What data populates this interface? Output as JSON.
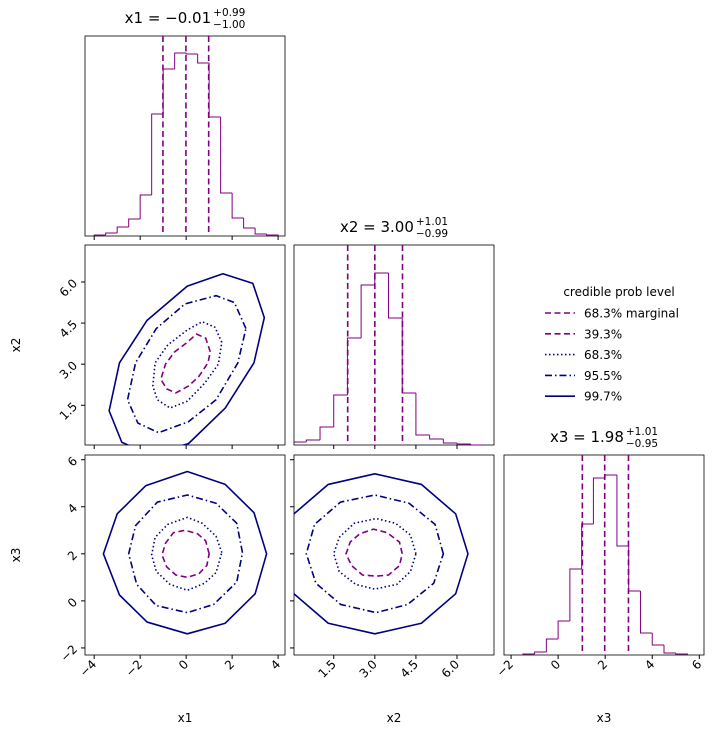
{
  "chart_data": {
    "type": "corner",
    "hist_color": "#800080",
    "parameters": [
      {
        "name": "x1",
        "range": [
          -4.4,
          4.3
        ],
        "ticks": [
          {
            "value": -4,
            "label": "−4"
          },
          {
            "value": -2,
            "label": "−2"
          },
          0,
          2,
          4
        ],
        "title": {
          "text": "x1 = −0.01",
          "upper": "+0.99",
          "lower": "−1.00"
        },
        "quantiles": [
          -1.01,
          -0.01,
          0.98
        ],
        "bins": [
          -4.0,
          -3.5,
          -3.0,
          -2.5,
          -2.0,
          -1.5,
          -1.0,
          -0.5,
          0.0,
          0.5,
          1.0,
          1.5,
          2.0,
          2.5,
          3.0,
          3.5,
          4.0
        ],
        "counts": [
          1,
          3,
          9,
          17,
          41,
          122,
          167,
          183,
          182,
          173,
          119,
          43,
          18,
          8,
          2,
          1
        ],
        "hist_ylim": [
          0,
          200
        ],
        "contours": []
      },
      {
        "name": "x2",
        "range": [
          0.05,
          7.35
        ],
        "ticks": [
          1.5,
          {
            "value": 3,
            "label": "3.0"
          },
          4.5,
          {
            "value": 6,
            "label": "6.0"
          }
        ],
        "title": {
          "text": "x2 = 3.00",
          "upper": "+1.01",
          "lower": "−0.99"
        },
        "quantiles": [
          2.01,
          3.0,
          4.01
        ],
        "bins": [
          0.0,
          0.5,
          1.0,
          1.5,
          2.0,
          2.5,
          3.0,
          3.5,
          4.0,
          4.5,
          5.0,
          5.5,
          6.0,
          6.5,
          7.0
        ],
        "counts": [
          3,
          5,
          18,
          50,
          107,
          160,
          172,
          127,
          52,
          10,
          6,
          2,
          1,
          0
        ],
        "hist_ylim": [
          0,
          200
        ],
        "contours": [
          {
            "levels": [
              {
                "x": [
                  1.05,
                  0.85,
                  0.45,
                  0.05,
                  -0.5,
                  -0.9,
                  -1.1,
                  -0.85,
                  -0.45,
                  0.1,
                  0.55,
                  0.95
                ],
                "y": [
                  3.45,
                  3.95,
                  4.1,
                  3.8,
                  3.45,
                  3.0,
                  2.45,
                  2.1,
                  1.95,
                  2.2,
                  2.55,
                  3.05
                ]
              },
              {
                "x": [
                  1.55,
                  1.25,
                  0.7,
                  0.05,
                  -0.8,
                  -1.35,
                  -1.45,
                  -1.25,
                  -0.7,
                  0.05,
                  0.8,
                  1.4
                ],
                "y": [
                  3.8,
                  4.35,
                  4.55,
                  4.25,
                  3.7,
                  3.05,
                  2.2,
                  1.7,
                  1.4,
                  1.65,
                  2.3,
                  3.0
                ]
              },
              {
                "x": [
                  2.6,
                  2.1,
                  1.3,
                  -0.05,
                  -1.3,
                  -2.2,
                  -2.55,
                  -2.1,
                  -1.2,
                  0.1,
                  1.3,
                  2.25
                ],
                "y": [
                  4.3,
                  5.25,
                  5.5,
                  5.2,
                  4.3,
                  3.05,
                  1.7,
                  0.85,
                  0.5,
                  0.9,
                  1.7,
                  3.05
                ]
              },
              {
                "x": [
                  3.4,
                  2.9,
                  1.6,
                  0.05,
                  -1.7,
                  -2.9,
                  -3.35,
                  -2.8,
                  -1.6,
                  0.1,
                  1.7,
                  2.95
                ],
                "y": [
                  4.7,
                  5.95,
                  6.3,
                  5.85,
                  4.6,
                  3.05,
                  1.3,
                  0.15,
                  -0.3,
                  0.1,
                  1.4,
                  3.05
                ]
              }
            ]
          }
        ]
      },
      {
        "name": "x3",
        "range": [
          -2.3,
          6.2
        ],
        "ticks": [
          {
            "value": -2,
            "label": "−2"
          },
          0,
          2,
          4,
          6
        ],
        "title": {
          "text": "x3 = 1.98",
          "upper": "+1.01",
          "lower": "−0.95"
        },
        "quantiles": [
          1.03,
          1.98,
          2.99
        ],
        "bins": [
          -1.5,
          -1.0,
          -0.5,
          0.0,
          0.5,
          1.0,
          1.5,
          2.0,
          2.5,
          3.0,
          3.5,
          4.0,
          4.5,
          5.0,
          5.5
        ],
        "counts": [
          1,
          3,
          16,
          34,
          86,
          131,
          177,
          180,
          109,
          64,
          22,
          10,
          2,
          1
        ],
        "hist_ylim": [
          0,
          200
        ],
        "contours": [
          {
            "levels": [
              {
                "x": [
                  1.0,
                  0.85,
                  0.5,
                  -0.05,
                  -0.55,
                  -0.9,
                  -1.05,
                  -0.85,
                  -0.45,
                  0.05,
                  0.55,
                  0.9
                ],
                "y": [
                  2.0,
                  2.55,
                  2.85,
                  3.0,
                  2.9,
                  2.45,
                  1.95,
                  1.45,
                  1.1,
                  1.0,
                  1.15,
                  1.5
                ]
              },
              {
                "x": [
                  1.55,
                  1.3,
                  0.7,
                  0.05,
                  -0.8,
                  -1.35,
                  -1.5,
                  -1.3,
                  -0.7,
                  0.05,
                  0.8,
                  1.3
                ],
                "y": [
                  2.05,
                  2.75,
                  3.3,
                  3.55,
                  3.25,
                  2.7,
                  1.95,
                  1.25,
                  0.7,
                  0.45,
                  0.75,
                  1.2
                ]
              },
              {
                "x": [
                  2.45,
                  2.2,
                  1.3,
                  0.05,
                  -1.25,
                  -2.2,
                  -2.5,
                  -2.15,
                  -1.3,
                  0.05,
                  1.2,
                  2.2
                ],
                "y": [
                  2.05,
                  3.3,
                  4.15,
                  4.5,
                  4.2,
                  3.2,
                  2.0,
                  0.7,
                  -0.2,
                  -0.5,
                  -0.15,
                  0.8
                ]
              },
              {
                "x": [
                  3.5,
                  2.95,
                  1.7,
                  0.05,
                  -1.75,
                  -3.0,
                  -3.6,
                  -2.9,
                  -1.7,
                  0.05,
                  1.7,
                  3.0
                ],
                "y": [
                  2.0,
                  3.75,
                  4.95,
                  5.5,
                  4.9,
                  3.7,
                  2.0,
                  0.25,
                  -0.9,
                  -1.4,
                  -0.95,
                  0.3
                ]
              }
            ]
          },
          {
            "levels": [
              {
                "x": [
                  4.0,
                  3.9,
                  3.45,
                  2.95,
                  2.45,
                  2.1,
                  1.95,
                  2.15,
                  2.55,
                  3.05,
                  3.5,
                  3.9
                ],
                "y": [
                  2.0,
                  2.5,
                  2.9,
                  3.05,
                  2.85,
                  2.5,
                  2.0,
                  1.5,
                  1.1,
                  1.05,
                  1.1,
                  1.5
                ]
              },
              {
                "x": [
                  4.5,
                  4.3,
                  3.75,
                  3.05,
                  2.25,
                  1.7,
                  1.5,
                  1.7,
                  2.3,
                  3.0,
                  3.8,
                  4.3
                ],
                "y": [
                  2.0,
                  2.8,
                  3.3,
                  3.5,
                  3.3,
                  2.7,
                  2.0,
                  1.25,
                  0.7,
                  0.5,
                  0.7,
                  1.25
                ]
              },
              {
                "x": [
                  5.5,
                  5.2,
                  4.25,
                  3.0,
                  1.75,
                  0.8,
                  0.5,
                  0.85,
                  1.75,
                  3.05,
                  4.2,
                  5.15
                ],
                "y": [
                  2.0,
                  3.25,
                  4.15,
                  4.5,
                  4.2,
                  3.25,
                  2.0,
                  0.75,
                  -0.15,
                  -0.5,
                  -0.15,
                  0.75
                ]
              },
              {
                "x": [
                  6.4,
                  5.95,
                  4.7,
                  3.0,
                  1.3,
                  0.05,
                  -0.4,
                  0.05,
                  1.3,
                  3.0,
                  4.7,
                  5.95
                ],
                "y": [
                  2.0,
                  3.7,
                  4.95,
                  5.4,
                  4.95,
                  3.7,
                  2.0,
                  0.3,
                  -0.95,
                  -1.4,
                  -0.95,
                  0.3
                ]
              }
            ]
          }
        ]
      }
    ],
    "legend": {
      "title": "credible prob level",
      "entries": [
        {
          "name": "68.3% marginal",
          "color": "#800080",
          "style": "dashed"
        },
        {
          "name": "39.3%",
          "color": "#800080",
          "style": "dashed"
        },
        {
          "name": "68.3%",
          "color": "#000080",
          "style": "dotted"
        },
        {
          "name": "95.5%",
          "color": "#000080",
          "style": "dashdot"
        },
        {
          "name": "99.7%",
          "color": "#000080",
          "style": "solid"
        }
      ]
    }
  }
}
